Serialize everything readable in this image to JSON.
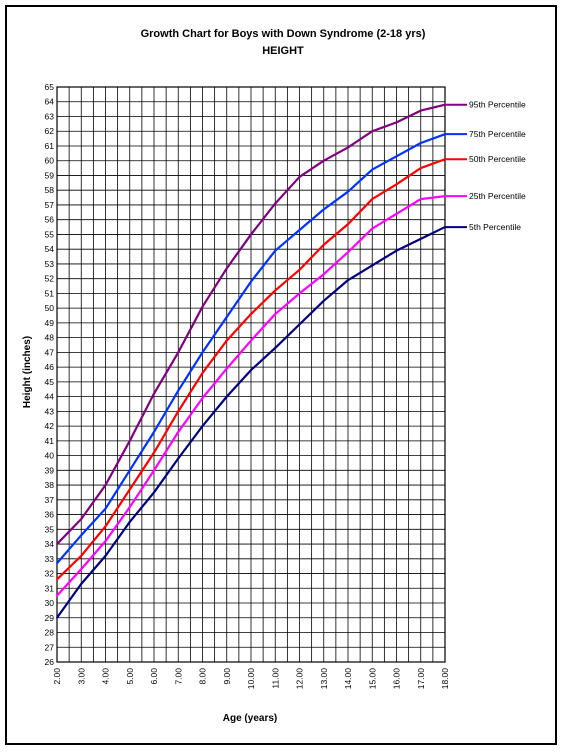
{
  "chart_data": {
    "type": "line",
    "title": "Growth Chart for Boys with Down Syndrome (2-18 yrs)",
    "subtitle": "HEIGHT",
    "xlabel": "Age (years)",
    "ylabel": "Height (inches)",
    "xlim": [
      2,
      18
    ],
    "ylim": [
      26,
      65
    ],
    "x_ticks": [
      "2.00",
      "3.00",
      "4.00",
      "5.00",
      "6.00",
      "7.00",
      "8.00",
      "9.00",
      "10.00",
      "11.00",
      "12.00",
      "13.00",
      "14.00",
      "15.00",
      "16.00",
      "17.00",
      "18.00"
    ],
    "grid": true,
    "legend_position": "right, at line ends",
    "x": [
      2,
      3,
      4,
      5,
      6,
      7,
      8,
      9,
      10,
      11,
      12,
      13,
      14,
      15,
      16,
      17,
      18
    ],
    "series": [
      {
        "name": "95th Percentile",
        "color": "#800080",
        "values": [
          34.0,
          35.7,
          38.0,
          41.0,
          44.2,
          47.0,
          50.1,
          52.7,
          55.0,
          57.1,
          58.9,
          60.0,
          60.9,
          62.0,
          62.6,
          63.4,
          63.8
        ]
      },
      {
        "name": "75th Percentile",
        "color": "#0033ff",
        "values": [
          32.7,
          34.6,
          36.4,
          39.0,
          41.6,
          44.4,
          47.0,
          49.4,
          51.8,
          53.9,
          55.3,
          56.7,
          57.9,
          59.4,
          60.3,
          61.2,
          61.8
        ]
      },
      {
        "name": "50th Percentile",
        "color": "#ff0000",
        "values": [
          31.6,
          33.2,
          35.2,
          37.7,
          40.2,
          43.0,
          45.6,
          47.8,
          49.6,
          51.2,
          52.6,
          54.3,
          55.7,
          57.4,
          58.4,
          59.5,
          60.1
        ]
      },
      {
        "name": "25th Percentile",
        "color": "#ff00ff",
        "values": [
          30.5,
          32.3,
          34.2,
          36.5,
          39.0,
          41.6,
          43.9,
          45.9,
          47.8,
          49.6,
          51.0,
          52.3,
          53.8,
          55.4,
          56.4,
          57.4,
          57.6
        ]
      },
      {
        "name": "5th Percentile",
        "color": "#000080",
        "values": [
          29.0,
          31.3,
          33.2,
          35.5,
          37.5,
          39.8,
          42.0,
          44.0,
          45.8,
          47.3,
          48.9,
          50.5,
          51.9,
          52.9,
          53.9,
          54.7,
          55.5
        ]
      }
    ]
  }
}
